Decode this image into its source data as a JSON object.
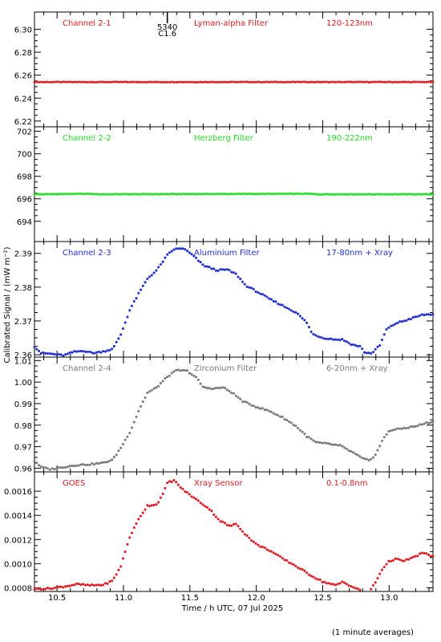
{
  "chart_data": {
    "type": "scatter",
    "xlabel": "Time / h UTC, 07 Jul 2025",
    "ylabel": "Calibrated Signal / (mW m⁻²)",
    "note": "(1 minute averages)",
    "xlim": [
      10.33,
      13.33
    ],
    "xticks": [
      "10.5",
      "11.0",
      "11.5",
      "12.0",
      "12.5",
      "13.0"
    ],
    "flare_marker": {
      "x": 11.33,
      "labels": [
        "5340",
        "C1.6"
      ]
    },
    "panels": [
      {
        "name": "Channel 2-1",
        "filter": "Lyman-alpha Filter",
        "band": "120-123nm",
        "color": "#e11b22",
        "ylim": [
          6.215,
          6.315
        ],
        "yticks": [
          "6.22",
          "6.24",
          "6.26",
          "6.28",
          "6.30"
        ],
        "points": [
          [
            10.33,
            6.254
          ],
          [
            13.33,
            6.254
          ]
        ]
      },
      {
        "name": "Channel 2-2",
        "filter": "Herzberg Filter",
        "band": "190-222nm",
        "color": "#22e022",
        "ylim": [
          692.2,
          702.4
        ],
        "yticks": [
          "694",
          "696",
          "698",
          "700",
          "702"
        ],
        "points": [
          [
            10.33,
            696.4
          ],
          [
            10.75,
            696.45
          ],
          [
            10.8,
            696.4
          ],
          [
            12.4,
            696.45
          ],
          [
            12.45,
            696.4
          ],
          [
            13.33,
            696.4
          ]
        ]
      },
      {
        "name": "Channel 2-3",
        "filter": "Aluminium Filter",
        "band": "17-80nm + Xray",
        "color": "#1f2ed1",
        "ylim": [
          2.3593,
          2.3935
        ],
        "yticks": [
          "2.36",
          "2.37",
          "2.38",
          "2.39"
        ],
        "points": [
          [
            10.33,
            2.3625
          ],
          [
            10.38,
            2.3605
          ],
          [
            10.45,
            2.3603
          ],
          [
            10.55,
            2.3598
          ],
          [
            10.62,
            2.3608
          ],
          [
            10.7,
            2.3612
          ],
          [
            10.77,
            2.3605
          ],
          [
            10.85,
            2.361
          ],
          [
            10.92,
            2.3617
          ],
          [
            10.98,
            2.366
          ],
          [
            11.05,
            2.3735
          ],
          [
            11.12,
            2.3785
          ],
          [
            11.18,
            2.3825
          ],
          [
            11.25,
            2.385
          ],
          [
            11.33,
            2.3895
          ],
          [
            11.38,
            2.3912
          ],
          [
            11.45,
            2.3915
          ],
          [
            11.52,
            2.3895
          ],
          [
            11.6,
            2.3865
          ],
          [
            11.7,
            2.385
          ],
          [
            11.78,
            2.3852
          ],
          [
            11.85,
            2.3838
          ],
          [
            11.92,
            2.3805
          ],
          [
            12.0,
            2.3788
          ],
          [
            12.1,
            2.3765
          ],
          [
            12.2,
            2.3745
          ],
          [
            12.3,
            2.3725
          ],
          [
            12.38,
            2.3695
          ],
          [
            12.42,
            2.3662
          ],
          [
            12.5,
            2.365
          ],
          [
            12.6,
            2.3645
          ],
          [
            12.65,
            2.3645
          ],
          [
            12.72,
            2.363
          ],
          [
            12.78,
            2.3625
          ],
          [
            12.82,
            2.3605
          ],
          [
            12.87,
            2.3605
          ],
          [
            12.93,
            2.3628
          ],
          [
            12.98,
            2.3675
          ],
          [
            13.05,
            2.3693
          ],
          [
            13.15,
            2.3705
          ],
          [
            13.25,
            2.3718
          ],
          [
            13.33,
            2.372
          ]
        ]
      },
      {
        "name": "Channel 2-4",
        "filter": "Zirconium Filter",
        "band": "6-20nm + Xray",
        "color": "#7a7a7a",
        "ylim": [
          0.9583,
          1.0116
        ],
        "yticks": [
          "0.96",
          "0.97",
          "0.98",
          "0.99",
          "1.00",
          "1.01"
        ],
        "points": [
          [
            10.33,
            0.9635
          ],
          [
            10.38,
            0.9605
          ],
          [
            10.45,
            0.9595
          ],
          [
            10.55,
            0.9605
          ],
          [
            10.65,
            0.9615
          ],
          [
            10.75,
            0.9618
          ],
          [
            10.85,
            0.9625
          ],
          [
            10.92,
            0.964
          ],
          [
            10.98,
            0.9695
          ],
          [
            11.05,
            0.977
          ],
          [
            11.12,
            0.9875
          ],
          [
            11.18,
            0.995
          ],
          [
            11.25,
            0.9975
          ],
          [
            11.33,
            1.0025
          ],
          [
            11.4,
            1.0055
          ],
          [
            11.48,
            1.0052
          ],
          [
            11.55,
            1.002
          ],
          [
            11.6,
            0.9975
          ],
          [
            11.68,
            0.997
          ],
          [
            11.75,
            0.9975
          ],
          [
            11.82,
            0.995
          ],
          [
            11.9,
            0.991
          ],
          [
            12.0,
            0.9885
          ],
          [
            12.1,
            0.9865
          ],
          [
            12.2,
            0.9835
          ],
          [
            12.3,
            0.9795
          ],
          [
            12.38,
            0.9748
          ],
          [
            12.45,
            0.972
          ],
          [
            12.55,
            0.9712
          ],
          [
            12.63,
            0.9705
          ],
          [
            12.72,
            0.9675
          ],
          [
            12.8,
            0.9645
          ],
          [
            12.85,
            0.9635
          ],
          [
            12.9,
            0.9665
          ],
          [
            12.95,
            0.973
          ],
          [
            13.0,
            0.9775
          ],
          [
            13.1,
            0.9785
          ],
          [
            13.2,
            0.9795
          ],
          [
            13.28,
            0.981
          ],
          [
            13.33,
            0.9815
          ]
        ]
      },
      {
        "name": "GOES",
        "filter": "Xray Sensor",
        "band": "0.1-0.8nm",
        "color": "#e11b22",
        "ylim": [
          0.00077,
          0.00176
        ],
        "yticks": [
          "0.0008",
          "0.0010",
          "0.0012",
          "0.0014",
          "0.0016"
        ],
        "points": [
          [
            10.33,
            0.00079
          ],
          [
            10.45,
            0.000795
          ],
          [
            10.55,
            0.00081
          ],
          [
            10.65,
            0.00083
          ],
          [
            10.75,
            0.00082
          ],
          [
            10.85,
            0.000825
          ],
          [
            10.92,
            0.00086
          ],
          [
            10.98,
            0.00098
          ],
          [
            11.05,
            0.00123
          ],
          [
            11.12,
            0.00138
          ],
          [
            11.18,
            0.00148
          ],
          [
            11.25,
            0.00149
          ],
          [
            11.3,
            0.00158
          ],
          [
            11.33,
            0.00167
          ],
          [
            11.38,
            0.00169
          ],
          [
            11.45,
            0.00161
          ],
          [
            11.55,
            0.00153
          ],
          [
            11.65,
            0.00145
          ],
          [
            11.72,
            0.00136
          ],
          [
            11.8,
            0.00131
          ],
          [
            11.85,
            0.00133
          ],
          [
            11.92,
            0.00124
          ],
          [
            12.0,
            0.00116
          ],
          [
            12.1,
            0.00111
          ],
          [
            12.2,
            0.00104
          ],
          [
            12.3,
            0.00098
          ],
          [
            12.4,
            0.00091
          ],
          [
            12.5,
            0.00085
          ],
          [
            12.6,
            0.00082
          ],
          [
            12.65,
            0.00085
          ],
          [
            12.72,
            0.00081
          ],
          [
            12.8,
            0.00077
          ],
          [
            12.85,
            0.00077
          ],
          [
            12.9,
            0.00085
          ],
          [
            12.95,
            0.00096
          ],
          [
            13.0,
            0.00102
          ],
          [
            13.05,
            0.00104
          ],
          [
            13.1,
            0.00102
          ],
          [
            13.18,
            0.00105
          ],
          [
            13.25,
            0.00109
          ],
          [
            13.33,
            0.00106
          ]
        ]
      }
    ]
  }
}
